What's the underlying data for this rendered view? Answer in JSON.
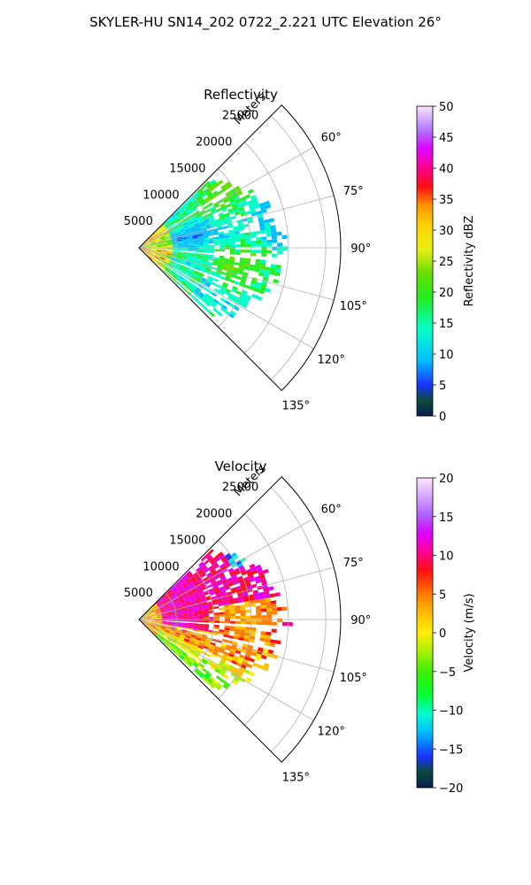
{
  "figure": {
    "suptitle": "SKYLER-HU  SN14_202  0722_2.221 UTC Elevation 26°"
  },
  "colors": {
    "grid": "#b0b0b0",
    "axis": "#000000"
  },
  "chart_data": [
    {
      "type": "heatmap",
      "subtype": "polar-sector",
      "title": "Reflectivity",
      "radial_label": "Meters",
      "radial_ticks": [
        "5000",
        "10000",
        "15000",
        "20000",
        "25000"
      ],
      "radial_tick_values": [
        5000,
        10000,
        15000,
        20000,
        25000
      ],
      "rlim": [
        0,
        27000
      ],
      "angle_ticks": [
        "60°",
        "75°",
        "90°",
        "105°",
        "120°",
        "135°"
      ],
      "angle_tick_values": [
        60,
        75,
        90,
        105,
        120,
        135
      ],
      "theta_range": [
        45,
        135
      ],
      "grid": true,
      "colorbar": {
        "label": "Reflectivity dBZ",
        "range": [
          0,
          50
        ],
        "ticks": [
          "0",
          "5",
          "10",
          "15",
          "20",
          "25",
          "30",
          "35",
          "40",
          "45",
          "50"
        ],
        "tick_values": [
          0,
          5,
          10,
          15,
          20,
          25,
          30,
          35,
          40,
          45,
          50
        ]
      },
      "field_summary": {
        "data_extent_m": [
          0,
          19000
        ],
        "dominant_range": [
          15,
          22
        ],
        "near_range_max": 40,
        "dominant_color_words": "green"
      }
    },
    {
      "type": "heatmap",
      "subtype": "polar-sector",
      "title": "Velocity",
      "radial_label": "Meters",
      "radial_ticks": [
        "5000",
        "10000",
        "15000",
        "20000",
        "25000"
      ],
      "radial_tick_values": [
        5000,
        10000,
        15000,
        20000,
        25000
      ],
      "rlim": [
        0,
        27000
      ],
      "angle_ticks": [
        "60°",
        "75°",
        "90°",
        "105°",
        "120°",
        "135°"
      ],
      "angle_tick_values": [
        60,
        75,
        90,
        105,
        120,
        135
      ],
      "theta_range": [
        45,
        135
      ],
      "grid": true,
      "colorbar": {
        "label": "Velocity (m/s)",
        "range": [
          -20,
          20
        ],
        "ticks": [
          "−20",
          "−15",
          "−10",
          "−5",
          "0",
          "5",
          "10",
          "15",
          "20"
        ],
        "tick_values": [
          -20,
          -15,
          -10,
          -5,
          0,
          5,
          10,
          15,
          20
        ]
      },
      "field_summary": {
        "data_extent_m": [
          0,
          19000
        ],
        "dominant_range": [
          8,
          18
        ],
        "min_observed": -12,
        "dominant_color_words": "red / magenta"
      }
    }
  ]
}
